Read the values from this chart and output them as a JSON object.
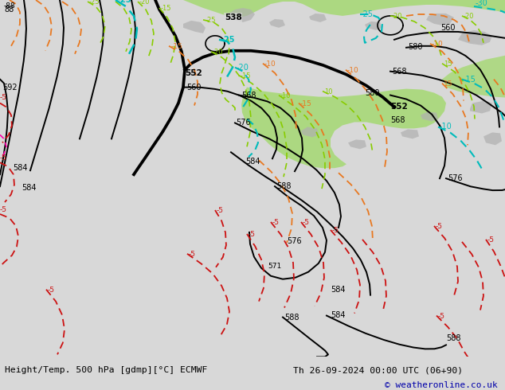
{
  "title_left": "Height/Temp. 500 hPa [gdmp][°C] ECMWF",
  "title_right": "Th 26-09-2024 00:00 UTC (06+90)",
  "copyright": "© weatheronline.co.uk",
  "bg_color": "#d8d8d8",
  "map_color": "#c8c8c8",
  "green_color": "#a8d878",
  "gray_land_color": "#b0b0b0",
  "fig_width": 6.34,
  "fig_height": 4.9,
  "dpi": 100,
  "bottom_bar_color": "#e0e0e0"
}
